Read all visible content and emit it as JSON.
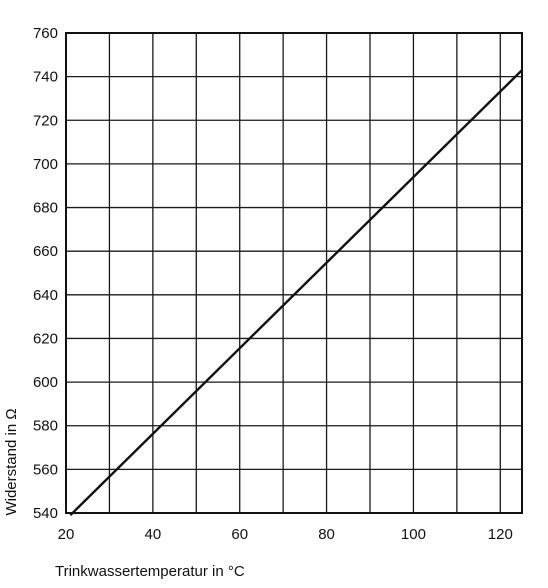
{
  "chart_data": {
    "type": "line",
    "title": "",
    "xlabel": "Trinkwassertemperatur in °C",
    "ylabel": "Widerstand in Ω",
    "xlim": [
      20,
      125
    ],
    "ylim": [
      540,
      760
    ],
    "grid": true,
    "x_ticks": [
      20,
      40,
      60,
      80,
      100,
      120
    ],
    "y_ticks": [
      540,
      560,
      580,
      600,
      620,
      640,
      660,
      680,
      700,
      720,
      740,
      760
    ],
    "x_gridlines": [
      20,
      30,
      40,
      50,
      60,
      70,
      80,
      90,
      100,
      110,
      120,
      125
    ],
    "series": [
      {
        "x": [
          21,
          125
        ],
        "y": [
          539,
          743
        ]
      }
    ]
  }
}
